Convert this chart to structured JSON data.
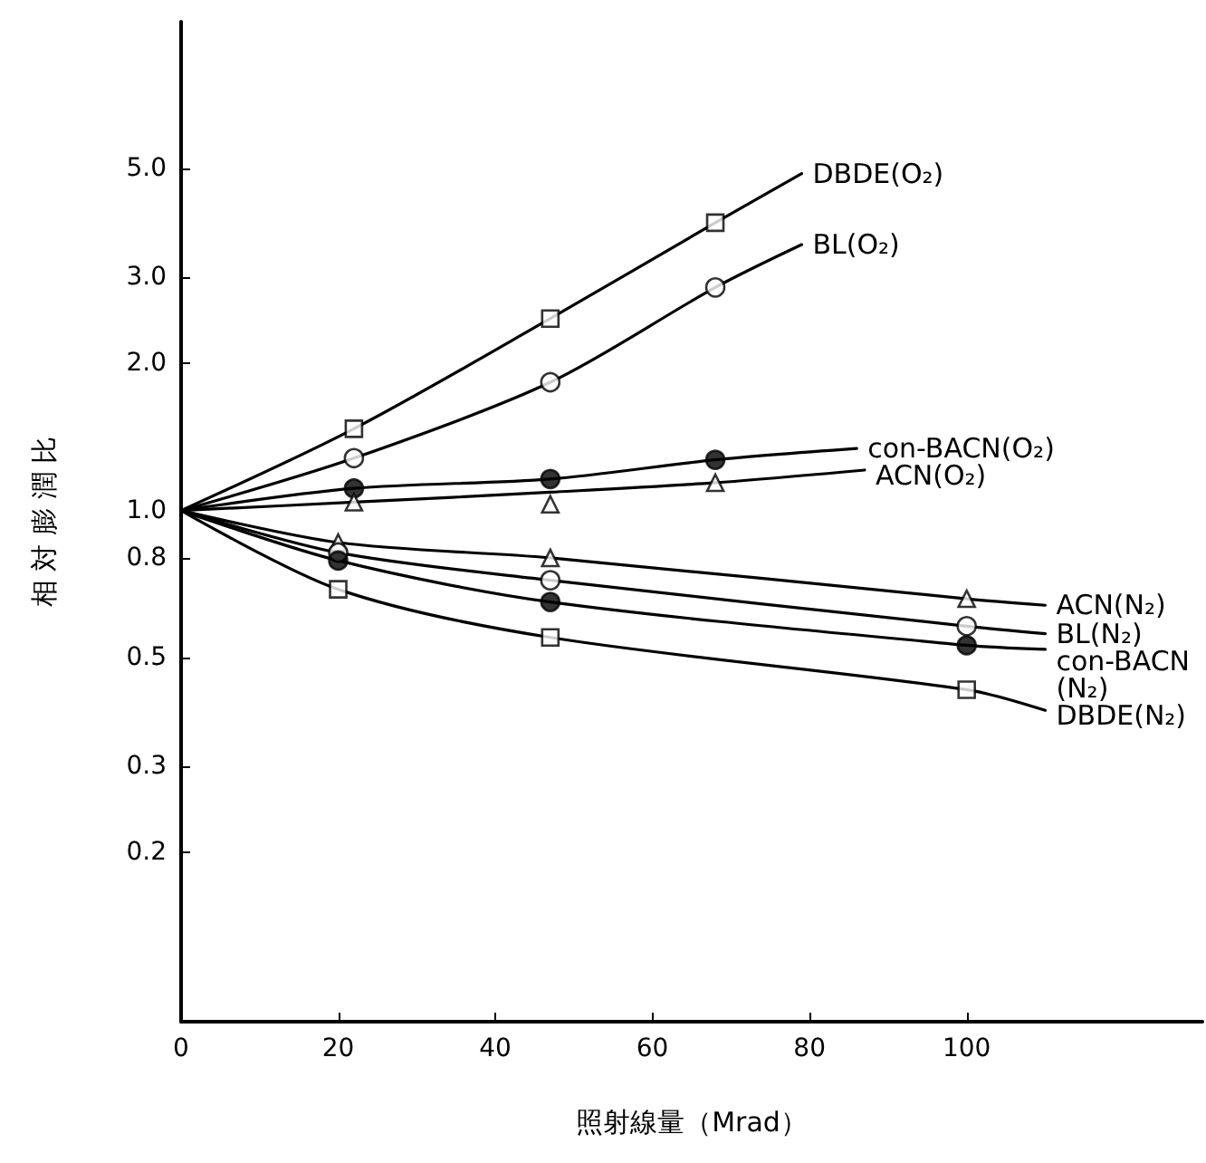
{
  "chart_data": {
    "type": "line",
    "xlabel": "照射線量（Mrad）",
    "ylabel": "相 対 膨 潤 比",
    "log": "y",
    "grid": false,
    "legend": false,
    "xlim": [
      0,
      130
    ],
    "xticks": [
      0,
      20,
      40,
      60,
      80,
      100
    ],
    "ylim": [
      0.09,
      10
    ],
    "yticks": [
      {
        "value": 0.2,
        "label": "0.2"
      },
      {
        "value": 0.3,
        "label": "0.3"
      },
      {
        "value": 0.5,
        "label": "0.5"
      },
      {
        "value": 0.8,
        "label": "0.8"
      },
      {
        "value": 1,
        "label": "1.0"
      },
      {
        "value": 2,
        "label": "2.0"
      },
      {
        "value": 3,
        "label": "3.0"
      },
      {
        "value": 5,
        "label": "5.0"
      }
    ],
    "series": [
      {
        "name": "DBDE(O₂)",
        "marker": "none",
        "color": "#000000",
        "x": [
          0,
          22,
          47,
          68,
          79
        ],
        "values": [
          1,
          1.47,
          2.47,
          3.88,
          4.89
        ]
      },
      {
        "name": "BL(O₂)",
        "marker": "none",
        "color": "#000000",
        "x": [
          0,
          22,
          47,
          68,
          79
        ],
        "values": [
          1,
          1.28,
          1.83,
          2.86,
          3.5
        ]
      },
      {
        "name": "con-BACN(O₂)",
        "marker": "none",
        "color": "#000000",
        "x": [
          0,
          22,
          47,
          68,
          86
        ],
        "values": [
          1,
          1.11,
          1.16,
          1.27,
          1.34
        ]
      },
      {
        "name": "ACN(O₂)",
        "marker": "none",
        "color": "#000000",
        "x": [
          0,
          22,
          47,
          68,
          87
        ],
        "values": [
          1,
          1.04,
          1.09,
          1.14,
          1.21
        ]
      },
      {
        "name": "ACN(N₂)",
        "marker": "none",
        "color": "#000000",
        "x": [
          0,
          20,
          47,
          100,
          110
        ],
        "values": [
          1,
          0.86,
          0.8,
          0.66,
          0.64
        ]
      },
      {
        "name": "BL(N₂)",
        "marker": "none",
        "color": "#000000",
        "x": [
          0,
          20,
          47,
          100,
          110
        ],
        "values": [
          1,
          0.82,
          0.72,
          0.58,
          0.56
        ]
      },
      {
        "name": "con-BACN(N₂)",
        "marker": "none",
        "color": "#000000",
        "x": [
          0,
          20,
          47,
          100,
          110
        ],
        "values": [
          1,
          0.79,
          0.65,
          0.53,
          0.52
        ]
      },
      {
        "name": "DBDE(N₂)",
        "marker": "none",
        "color": "#000000",
        "x": [
          0,
          20,
          47,
          100,
          110
        ],
        "values": [
          1,
          0.69,
          0.55,
          0.43,
          0.39
        ]
      },
      {
        "type": "scatter",
        "marker": "square",
        "color": "#ffffff",
        "x": [
          22,
          47,
          68
        ],
        "values": [
          1.47,
          2.47,
          3.88
        ]
      },
      {
        "type": "scatter",
        "marker": "circle",
        "color": "#ffffff",
        "x": [
          22,
          47,
          68
        ],
        "values": [
          1.28,
          1.83,
          2.86
        ]
      },
      {
        "type": "scatter",
        "marker": "circle",
        "color": "#000000",
        "x": [
          22,
          47,
          68
        ],
        "values": [
          1.11,
          1.16,
          1.27
        ]
      },
      {
        "type": "scatter",
        "marker": "triangle",
        "color": "#ffffff",
        "x": [
          22,
          47,
          68
        ],
        "values": [
          1.04,
          1.03,
          1.14
        ]
      },
      {
        "type": "scatter",
        "marker": "triangle",
        "color": "#ffffff",
        "x": [
          20,
          47,
          100
        ],
        "values": [
          0.86,
          0.8,
          0.66
        ]
      },
      {
        "type": "scatter",
        "marker": "circle",
        "color": "#ffffff",
        "x": [
          20,
          47,
          100
        ],
        "values": [
          0.82,
          0.72,
          0.58
        ]
      },
      {
        "type": "scatter",
        "marker": "circle",
        "color": "#000000",
        "x": [
          20,
          47,
          100
        ],
        "values": [
          0.79,
          0.65,
          0.53
        ]
      },
      {
        "type": "scatter",
        "marker": "square",
        "color": "#ffffff",
        "x": [
          20,
          47,
          100
        ],
        "values": [
          0.69,
          0.55,
          0.43
        ]
      }
    ]
  }
}
